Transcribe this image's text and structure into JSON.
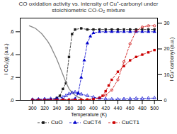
{
  "chart_data": {
    "type": "line",
    "title": "CO oxidation activity vs. intensity of Cu⁺-carbonyl under stoichiometric CO-O₂ mixture",
    "xlabel": "Temperature (K)",
    "ylabel": "I CO₂(g) (a.u.)",
    "y2label": "I Cu⁺ carbonyl (a.u.)",
    "xlim": [
      280,
      505
    ],
    "xticks": [
      300,
      320,
      340,
      360,
      380,
      400,
      420,
      440,
      460,
      480,
      500
    ],
    "ylim": [
      0,
      0.72
    ],
    "yticks": [
      {
        "value": 0.0,
        "label": ".0"
      },
      {
        "value": 0.2,
        "label": ".2"
      },
      {
        "value": 0.4,
        "label": ".4"
      },
      {
        "value": 0.6,
        "label": ".6"
      }
    ],
    "y2lim": [
      0,
      32
    ],
    "y2ticks": [
      0,
      10,
      20,
      30
    ],
    "grid": false,
    "legend": "bottom",
    "series": [
      {
        "name": "CuO",
        "color": "#1a1a1a",
        "marker": "square",
        "line_style": "dashed",
        "x": [
          300,
          310,
          320,
          330,
          340,
          345,
          350,
          355,
          360,
          365,
          370,
          380,
          390,
          400,
          410,
          420,
          430,
          440,
          450,
          460,
          470,
          480,
          490,
          500
        ],
        "values": [
          0.005,
          0.005,
          0.005,
          0.008,
          0.02,
          0.04,
          0.1,
          0.15,
          0.38,
          0.58,
          0.62,
          0.63,
          0.62,
          0.62,
          0.62,
          0.62,
          0.62,
          0.62,
          0.62,
          0.62,
          0.62,
          0.62,
          0.62,
          0.62
        ]
      },
      {
        "name": "CuCT4",
        "color": "#0000cc",
        "marker": "triangle",
        "line_style": "dashed",
        "x": [
          300,
          310,
          320,
          330,
          340,
          350,
          360,
          370,
          375,
          380,
          385,
          390,
          395,
          400,
          410,
          420,
          430,
          440,
          450,
          460,
          470,
          480,
          490,
          500
        ],
        "values": [
          0.005,
          0.005,
          0.005,
          0.005,
          0.005,
          0.005,
          0.005,
          0.015,
          0.06,
          0.2,
          0.35,
          0.5,
          0.56,
          0.59,
          0.6,
          0.6,
          0.6,
          0.6,
          0.6,
          0.6,
          0.6,
          0.6,
          0.6,
          0.6
        ]
      },
      {
        "name": "CuCT1",
        "color": "#cc0000",
        "marker": "square",
        "line_style": "dashed",
        "x": [
          300,
          310,
          320,
          330,
          340,
          350,
          360,
          370,
          380,
          390,
          400,
          410,
          415,
          420,
          425,
          430,
          440,
          450,
          460,
          470,
          480,
          490,
          500
        ],
        "values": [
          0.005,
          0.005,
          0.005,
          0.005,
          0.005,
          0.005,
          0.005,
          0.005,
          0.005,
          0.005,
          0.01,
          0.02,
          0.04,
          0.08,
          0.13,
          0.18,
          0.25,
          0.3,
          0.35,
          0.38,
          0.4,
          0.42,
          0.44
        ]
      },
      {
        "color": "#888888",
        "line_style": "solid",
        "axis": "y2",
        "x": [
          295,
          300,
          305,
          310,
          315,
          320,
          325,
          330,
          335,
          340,
          345,
          350,
          355,
          360,
          365,
          370,
          375,
          380
        ],
        "values": [
          29.0,
          28.5,
          28.0,
          27.0,
          26.0,
          24.5,
          23.0,
          21.0,
          18.5,
          16.0,
          13.0,
          10.0,
          7.0,
          4.5,
          3.0,
          2.0,
          1.2,
          0.8
        ]
      },
      {
        "color": "#0000cc",
        "marker": "triangle",
        "line_style": "dashed",
        "axis": "y2",
        "x": [
          300,
          310,
          320,
          330,
          340,
          350,
          355,
          360,
          365,
          370,
          375,
          380,
          390,
          400,
          410,
          420,
          430,
          440,
          450,
          460,
          470,
          480,
          490,
          500
        ],
        "values": [
          0.3,
          0.4,
          0.5,
          0.6,
          0.8,
          1.2,
          1.8,
          2.5,
          3.0,
          3.2,
          2.8,
          2.4,
          1.8,
          1.2,
          0.8,
          0.5,
          0.4,
          0.4,
          0.5,
          0.6,
          0.7,
          0.7,
          0.8,
          0.9
        ]
      },
      {
        "color": "#cc0000",
        "marker": "circle",
        "line_style": "dashed",
        "axis": "y2",
        "x": [
          300,
          310,
          320,
          330,
          340,
          350,
          360,
          370,
          380,
          390,
          400,
          410,
          420,
          430,
          440,
          450,
          460,
          470,
          480,
          490,
          500
        ],
        "values": [
          0.1,
          0.1,
          0.1,
          0.1,
          0.1,
          0.1,
          0.1,
          0.1,
          0.2,
          0.3,
          0.5,
          1.0,
          2.0,
          4.0,
          8.0,
          15.0,
          22.0,
          27.0,
          28.5,
          29.0,
          29.0
        ]
      }
    ]
  }
}
